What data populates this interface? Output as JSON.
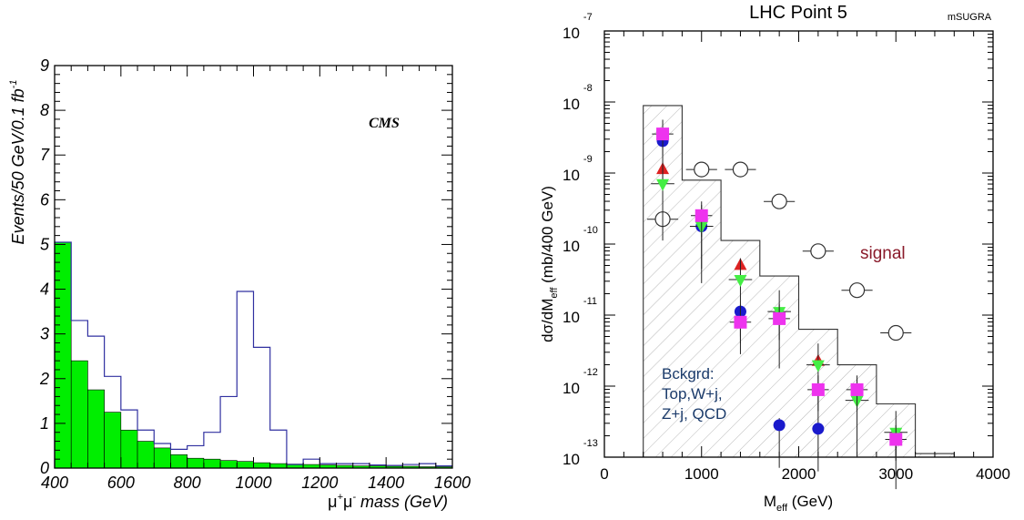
{
  "chart_data": [
    {
      "type": "bar",
      "annotation": "CMS",
      "xlabel": {
        "mu": "μ",
        "sup_plus": "+",
        "mu2": "μ",
        "sup_minus": "-",
        "rest": " mass (GeV)"
      },
      "ylabel": {
        "main": "Events/50 GeV/0.1 fb",
        "sup": "-1"
      },
      "xlim": [
        400,
        1600
      ],
      "ylim": [
        0,
        9
      ],
      "xticks": [
        "400",
        "600",
        "800",
        "1000",
        "1200",
        "1400",
        "1600"
      ],
      "yticks": [
        "0",
        "1",
        "2",
        "3",
        "4",
        "5",
        "6",
        "7",
        "8",
        "9"
      ],
      "bin_width": 50,
      "bin_edges_start": 400,
      "series": [
        {
          "style": "filled",
          "color": "#00ee00",
          "values": [
            5.05,
            2.4,
            1.75,
            1.25,
            0.85,
            0.6,
            0.45,
            0.3,
            0.22,
            0.2,
            0.17,
            0.15,
            0.12,
            0.1,
            0.09,
            0.08,
            0.07,
            0.06,
            0.05,
            0.05,
            0.04,
            0.04,
            0.03,
            0.03
          ]
        },
        {
          "style": "outline",
          "color": "#3030a0",
          "values": [
            5.05,
            3.3,
            2.95,
            2.05,
            1.3,
            0.85,
            0.55,
            0.42,
            0.5,
            0.8,
            1.6,
            3.95,
            2.7,
            0.85,
            0.08,
            0.2,
            0.1,
            0.1,
            0.1,
            0.07,
            0.06,
            0.08,
            0.1,
            0.05
          ]
        }
      ]
    },
    {
      "type": "scatter",
      "title": "LHC Point 5",
      "tag": "mSUGRA",
      "scale_y": "log",
      "xlabel": {
        "main": "M",
        "sub": "eff",
        "rest": " (GeV)"
      },
      "ylabel": {
        "a": "dσ/dM",
        "sub": "eff",
        "b": " (mb/400 GeV)"
      },
      "xlim": [
        0,
        4000
      ],
      "ylim_exponent": [
        -13,
        -7
      ],
      "xticks": [
        "0",
        "1000",
        "2000",
        "3000",
        "4000"
      ],
      "ytick_base": "10",
      "ytick_exponents": [
        "-7",
        "-8",
        "-9",
        "-10",
        "-11",
        "-12",
        "-13"
      ],
      "signal_label": "signal",
      "background_label": [
        "Bckgrd:",
        "Top,W+j,",
        "Z+j, QCD"
      ],
      "histogram": {
        "edges": [
          400,
          800,
          1200,
          1600,
          2000,
          2400,
          2800,
          3200,
          3600
        ],
        "log_values": [
          -8.05,
          -9.1,
          -9.95,
          -10.45,
          -11.2,
          -11.7,
          -12.25,
          -12.95
        ]
      },
      "signal_points": [
        {
          "x": 600,
          "log_y": -9.65
        },
        {
          "x": 1000,
          "log_y": -8.95
        },
        {
          "x": 1400,
          "log_y": -8.95
        },
        {
          "x": 1800,
          "log_y": -9.4
        },
        {
          "x": 2200,
          "log_y": -10.1
        },
        {
          "x": 2600,
          "log_y": -10.65
        },
        {
          "x": 3000,
          "log_y": -11.25
        }
      ],
      "background_points": {
        "circle": [
          {
            "x": 600,
            "log_y": -8.55
          },
          {
            "x": 1000,
            "log_y": -9.75
          },
          {
            "x": 1400,
            "log_y": -10.95
          },
          {
            "x": 1800,
            "log_y": -12.55
          },
          {
            "x": 2200,
            "log_y": -12.6
          }
        ],
        "square": [
          {
            "x": 600,
            "log_y": -8.45
          },
          {
            "x": 1000,
            "log_y": -9.6
          },
          {
            "x": 1400,
            "log_y": -11.1
          },
          {
            "x": 1800,
            "log_y": -11.05
          },
          {
            "x": 2200,
            "log_y": -12.05
          },
          {
            "x": 2600,
            "log_y": -12.05
          },
          {
            "x": 3000,
            "log_y": -12.75
          }
        ],
        "triangle_up": [
          {
            "x": 600,
            "log_y": -8.95
          },
          {
            "x": 1400,
            "log_y": -10.3
          },
          {
            "x": 2200,
            "log_y": -11.65
          }
        ],
        "triangle_down": [
          {
            "x": 600,
            "log_y": -9.15
          },
          {
            "x": 1000,
            "log_y": -9.75
          },
          {
            "x": 1400,
            "log_y": -10.5
          },
          {
            "x": 1800,
            "log_y": -10.95
          },
          {
            "x": 2200,
            "log_y": -11.7
          },
          {
            "x": 2600,
            "log_y": -12.2
          },
          {
            "x": 3000,
            "log_y": -12.65
          }
        ]
      },
      "colors": {
        "circle": "#1a1acc",
        "square": "#ee33ee",
        "triangle_up": "#dd2222",
        "triangle_down": "#44ee44",
        "signal_text": "#8a1a2a",
        "background_text": "#1a3a6a"
      }
    }
  ]
}
